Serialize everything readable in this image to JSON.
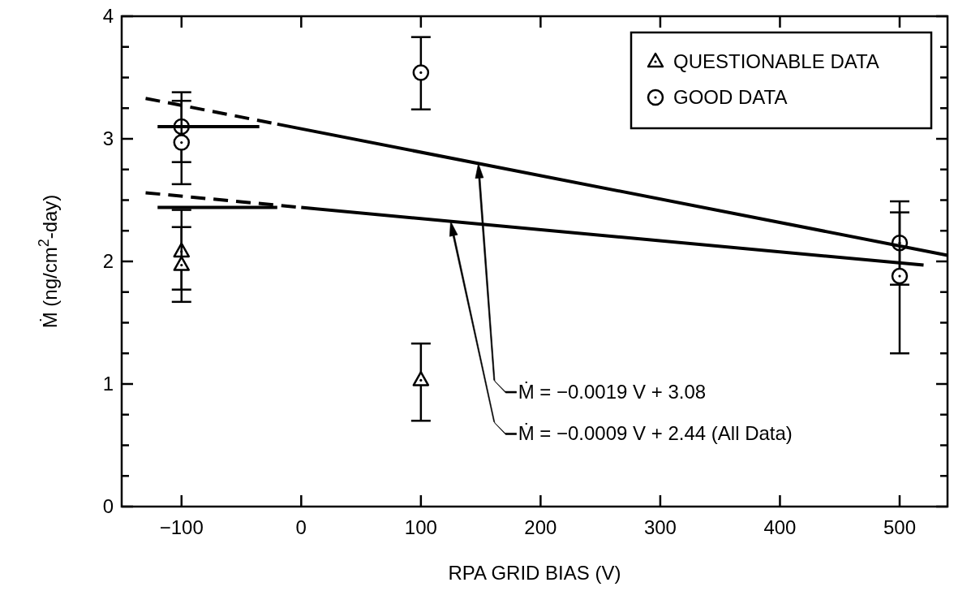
{
  "chart_data": {
    "type": "scatter",
    "xlabel": "RPA GRID BIAS (V)",
    "ylabel": "Ṁ (ng/cm$^{2}$-day)",
    "xlim": [
      -150,
      540
    ],
    "xticks": [
      {
        "value": -100,
        "label": "−100"
      },
      0,
      100,
      200,
      300,
      400,
      500
    ],
    "ylim": [
      0,
      4
    ],
    "yticks": [
      0,
      {
        "value": 0.25,
        "label": null
      },
      {
        "value": 0.5,
        "label": null
      },
      {
        "value": 0.75,
        "label": null
      },
      1,
      {
        "value": 1.25,
        "label": null
      },
      {
        "value": 1.5,
        "label": null
      },
      {
        "value": 1.75,
        "label": null
      },
      2,
      {
        "value": 2.25,
        "label": null
      },
      {
        "value": 2.5,
        "label": null
      },
      {
        "value": 2.75,
        "label": null
      },
      3,
      {
        "value": 3.25,
        "label": null
      },
      {
        "value": 3.5,
        "label": null
      },
      {
        "value": 3.75,
        "label": null
      },
      4
    ],
    "grid": false,
    "legend": "top right",
    "series": [
      {
        "name": "QUESTIONABLE DATA",
        "marker": "triangle",
        "color": "#000000",
        "x": [
          -100,
          -100,
          100
        ],
        "values": [
          2.08,
          1.97,
          1.03
        ],
        "errors": [
          [
            1.67,
            2.28
          ],
          [
            1.77,
            2.42
          ],
          [
            0.7,
            1.33
          ]
        ]
      },
      {
        "name": "GOOD DATA",
        "marker": "circle",
        "color": "#000000",
        "x": [
          -100,
          -100,
          100,
          500,
          500
        ],
        "values": [
          3.1,
          2.97,
          3.54,
          2.15,
          1.88
        ],
        "errors": [
          [
            2.81,
            3.38
          ],
          [
            2.63,
            3.31
          ],
          [
            3.24,
            3.83
          ],
          [
            1.81,
            2.49
          ],
          [
            1.25,
            2.4
          ]
        ]
      },
      {
        "type": "line",
        "line_style": "dashed",
        "color": "#000000",
        "x": [
          -130,
          -20
        ],
        "values": [
          3.33,
          3.12
        ]
      },
      {
        "type": "line",
        "line_style": "solid",
        "color": "#000000",
        "x": [
          -20,
          540
        ],
        "values": [
          3.12,
          2.05
        ]
      },
      {
        "type": "line",
        "line_style": "dashed",
        "color": "#000000",
        "x": [
          -130,
          0
        ],
        "values": [
          2.56,
          2.44
        ]
      },
      {
        "type": "line",
        "line_style": "solid",
        "color": "#000000",
        "x": [
          0,
          520
        ],
        "values": [
          2.44,
          1.97
        ]
      },
      {
        "type": "line",
        "line_style": "solid",
        "color": "#000000",
        "x": [
          -120,
          -35
        ],
        "values": [
          3.1,
          3.1
        ]
      },
      {
        "type": "line",
        "line_style": "solid",
        "color": "#000000",
        "x": [
          -120,
          -20
        ],
        "values": [
          2.44,
          2.44
        ]
      }
    ],
    "annotations": [
      "Ṁ = −0.0019 V + 3.08",
      "Ṁ = −0.0009 V + 2.44 (All Data)"
    ]
  }
}
